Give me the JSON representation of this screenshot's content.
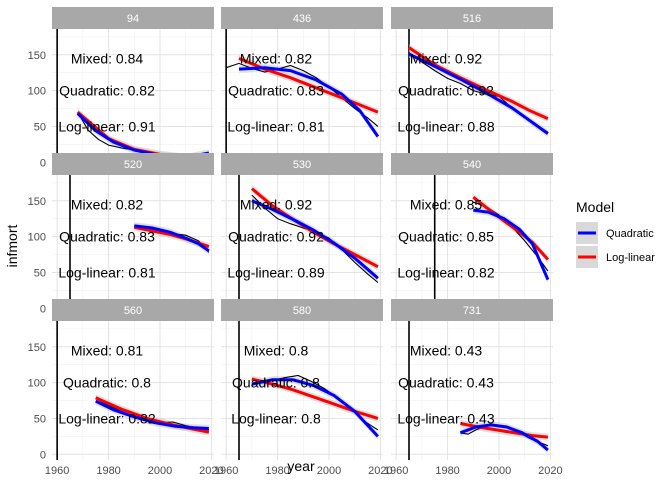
{
  "chart_data": {
    "type": "line",
    "xlabel": "year",
    "ylabel": "infmort",
    "xlim": [
      1958,
      2021
    ],
    "ylim": [
      -8,
      186
    ],
    "x_ticks": [
      1960,
      1980,
      2000,
      2020
    ],
    "x_tick_labels": [
      "1960",
      "1980",
      "2000",
      "2020"
    ],
    "y_ticks": [
      0,
      50,
      100,
      150
    ],
    "y_tick_labels": [
      "0",
      "50",
      "100",
      "150"
    ],
    "grid": true,
    "legend": {
      "title": "Model",
      "position": "right",
      "entries": [
        {
          "label": "Quadratic",
          "color": "#0000ff"
        },
        {
          "label": "Log-linear",
          "color": "#ff0000"
        }
      ]
    },
    "colors": {
      "strip_background": "#a8a8a8",
      "observed": "#000000",
      "quadratic": "#0000ff",
      "loglinear": "#ff0000",
      "ribbon": "#c8c8c8"
    },
    "panels": [
      {
        "label": "94",
        "vline": 1960,
        "annotations": [
          "Mixed: 0.84",
          "Quadratic: 0.82",
          "Log-linear: 0.91"
        ],
        "observed": [
          [
            1968,
            70
          ],
          [
            1972,
            45
          ],
          [
            1976,
            32
          ],
          [
            1980,
            24
          ],
          [
            1985,
            20
          ],
          [
            1990,
            17
          ],
          [
            1995,
            14
          ],
          [
            2000,
            12
          ],
          [
            2005,
            9
          ],
          [
            2010,
            8
          ],
          [
            2015,
            9
          ],
          [
            2019,
            13
          ]
        ],
        "quadratic": [
          [
            1968,
            68
          ],
          [
            1975,
            44
          ],
          [
            1982,
            28
          ],
          [
            1990,
            17
          ],
          [
            1998,
            11
          ],
          [
            2005,
            8
          ],
          [
            2012,
            8
          ],
          [
            2019,
            13
          ]
        ],
        "loglinear": [
          [
            1968,
            70
          ],
          [
            1980,
            33
          ],
          [
            1990,
            18
          ],
          [
            2000,
            11
          ],
          [
            2010,
            7
          ],
          [
            2019,
            4
          ]
        ]
      },
      {
        "label": "436",
        "vline": 1960,
        "annotations": [
          "Mixed: 0.82",
          "Quadratic: 0.83",
          "Log-linear: 0.81"
        ],
        "observed": [
          [
            1960,
            132
          ],
          [
            1965,
            138
          ],
          [
            1970,
            131
          ],
          [
            1975,
            126
          ],
          [
            1980,
            130
          ],
          [
            1985,
            135
          ],
          [
            1990,
            128
          ],
          [
            1995,
            118
          ],
          [
            2000,
            105
          ],
          [
            2005,
            90
          ],
          [
            2010,
            75
          ],
          [
            2015,
            62
          ],
          [
            2019,
            50
          ]
        ],
        "quadratic": [
          [
            1965,
            130
          ],
          [
            1975,
            132
          ],
          [
            1985,
            128
          ],
          [
            1995,
            115
          ],
          [
            2005,
            95
          ],
          [
            2012,
            72
          ],
          [
            2019,
            36
          ]
        ],
        "loglinear": [
          [
            1965,
            145
          ],
          [
            1975,
            130
          ],
          [
            1985,
            118
          ],
          [
            1995,
            104
          ],
          [
            2005,
            90
          ],
          [
            2012,
            80
          ],
          [
            2019,
            70
          ]
        ]
      },
      {
        "label": "516",
        "vline": 1965,
        "annotations": [
          "Mixed: 0.92",
          "Quadratic: 0.92",
          "Log-linear: 0.88"
        ],
        "observed": [
          [
            1965,
            153
          ],
          [
            1970,
            140
          ],
          [
            1975,
            128
          ],
          [
            1980,
            117
          ],
          [
            1985,
            110
          ],
          [
            1990,
            100
          ],
          [
            1995,
            95
          ],
          [
            2000,
            92
          ],
          [
            2005,
            76
          ],
          [
            2010,
            63
          ],
          [
            2015,
            51
          ],
          [
            2019,
            42
          ]
        ],
        "quadratic": [
          [
            1965,
            151
          ],
          [
            1975,
            134
          ],
          [
            1985,
            116
          ],
          [
            1995,
            97
          ],
          [
            2005,
            76
          ],
          [
            2012,
            58
          ],
          [
            2019,
            40
          ]
        ],
        "loglinear": [
          [
            1965,
            160
          ],
          [
            1975,
            136
          ],
          [
            1985,
            118
          ],
          [
            1995,
            101
          ],
          [
            2005,
            85
          ],
          [
            2012,
            72
          ],
          [
            2019,
            61
          ]
        ]
      },
      {
        "label": "520",
        "vline": 1965,
        "annotations": [
          "Mixed: 0.82",
          "Quadratic: 0.83",
          "Log-linear: 0.81"
        ],
        "observed": [
          [
            1990,
            113
          ],
          [
            1995,
            110
          ],
          [
            2000,
            107
          ],
          [
            2005,
            104
          ],
          [
            2010,
            102
          ],
          [
            2015,
            94
          ],
          [
            2019,
            78
          ]
        ],
        "quadratic": [
          [
            1990,
            115
          ],
          [
            1997,
            112
          ],
          [
            2004,
            106
          ],
          [
            2010,
            98
          ],
          [
            2015,
            90
          ],
          [
            2019,
            80
          ]
        ],
        "loglinear": [
          [
            1990,
            113
          ],
          [
            1997,
            108
          ],
          [
            2004,
            103
          ],
          [
            2010,
            97
          ],
          [
            2015,
            91
          ],
          [
            2019,
            86
          ]
        ]
      },
      {
        "label": "530",
        "vline": 1965,
        "annotations": [
          "Mixed: 0.92",
          "Quadratic: 0.92",
          "Log-linear: 0.89"
        ],
        "observed": [
          [
            1970,
            158
          ],
          [
            1975,
            140
          ],
          [
            1980,
            125
          ],
          [
            1985,
            118
          ],
          [
            1990,
            112
          ],
          [
            1995,
            106
          ],
          [
            2000,
            98
          ],
          [
            2005,
            82
          ],
          [
            2010,
            64
          ],
          [
            2015,
            48
          ],
          [
            2019,
            36
          ]
        ],
        "quadratic": [
          [
            1970,
            150
          ],
          [
            1978,
            138
          ],
          [
            1986,
            124
          ],
          [
            1994,
            109
          ],
          [
            2002,
            91
          ],
          [
            2010,
            70
          ],
          [
            2019,
            42
          ]
        ],
        "loglinear": [
          [
            1970,
            167
          ],
          [
            1978,
            143
          ],
          [
            1986,
            124
          ],
          [
            1994,
            106
          ],
          [
            2002,
            90
          ],
          [
            2010,
            75
          ],
          [
            2019,
            58
          ]
        ]
      },
      {
        "label": "540",
        "vline": 1975,
        "annotations": [
          "Mixed: 0.85",
          "Quadratic: 0.85",
          "Log-linear: 0.82"
        ],
        "observed": [
          [
            1990,
            148
          ],
          [
            1995,
            142
          ],
          [
            2000,
            130
          ],
          [
            2005,
            114
          ],
          [
            2010,
            94
          ],
          [
            2015,
            72
          ],
          [
            2019,
            52
          ]
        ],
        "quadratic": [
          [
            1990,
            137
          ],
          [
            1996,
            134
          ],
          [
            2002,
            125
          ],
          [
            2008,
            110
          ],
          [
            2013,
            90
          ],
          [
            2019,
            40
          ]
        ],
        "loglinear": [
          [
            1990,
            155
          ],
          [
            1996,
            138
          ],
          [
            2002,
            122
          ],
          [
            2008,
            106
          ],
          [
            2013,
            92
          ],
          [
            2019,
            68
          ]
        ]
      },
      {
        "label": "560",
        "vline": 1960,
        "annotations": [
          "Mixed: 0.81",
          "Quadratic: 0.8",
          "Log-linear: 0.82"
        ],
        "observed": [
          [
            1975,
            78
          ],
          [
            1980,
            68
          ],
          [
            1985,
            60
          ],
          [
            1990,
            52
          ],
          [
            1995,
            47
          ],
          [
            2000,
            44
          ],
          [
            2005,
            45
          ],
          [
            2010,
            40
          ],
          [
            2015,
            36
          ],
          [
            2019,
            34
          ]
        ],
        "quadratic": [
          [
            1975,
            74
          ],
          [
            1982,
            62
          ],
          [
            1990,
            52
          ],
          [
            1998,
            44
          ],
          [
            2006,
            39
          ],
          [
            2013,
            37
          ],
          [
            2019,
            36
          ]
        ],
        "loglinear": [
          [
            1975,
            79
          ],
          [
            1985,
            63
          ],
          [
            1995,
            50
          ],
          [
            2005,
            41
          ],
          [
            2013,
            35
          ],
          [
            2019,
            31
          ]
        ]
      },
      {
        "label": "580",
        "vline": 1965,
        "annotations": [
          "Mixed: 0.8",
          "Quadratic: 0.8",
          "Log-linear: 0.8"
        ],
        "observed": [
          [
            1972,
            100
          ],
          [
            1978,
            103
          ],
          [
            1983,
            107
          ],
          [
            1988,
            110
          ],
          [
            1993,
            102
          ],
          [
            1998,
            92
          ],
          [
            2003,
            80
          ],
          [
            2008,
            65
          ],
          [
            2013,
            48
          ],
          [
            2019,
            34
          ]
        ],
        "quadratic": [
          [
            1970,
            98
          ],
          [
            1978,
            104
          ],
          [
            1986,
            104
          ],
          [
            1994,
            96
          ],
          [
            2002,
            82
          ],
          [
            2010,
            60
          ],
          [
            2019,
            25
          ]
        ],
        "loglinear": [
          [
            1970,
            105
          ],
          [
            1978,
            98
          ],
          [
            1986,
            90
          ],
          [
            1994,
            80
          ],
          [
            2002,
            70
          ],
          [
            2010,
            60
          ],
          [
            2019,
            50
          ]
        ]
      },
      {
        "label": "731",
        "vline": 1965,
        "annotations": [
          "Mixed: 0.43",
          "Quadratic: 0.43",
          "Log-linear: 0.43"
        ],
        "observed": [
          [
            1985,
            30
          ],
          [
            1988,
            28
          ],
          [
            1991,
            34
          ],
          [
            1994,
            38
          ],
          [
            1997,
            42
          ],
          [
            2000,
            40
          ],
          [
            2004,
            37
          ],
          [
            2008,
            30
          ],
          [
            2012,
            22
          ],
          [
            2016,
            16
          ],
          [
            2019,
            12
          ]
        ],
        "quadratic": [
          [
            1985,
            30
          ],
          [
            1991,
            38
          ],
          [
            1997,
            41
          ],
          [
            2003,
            38
          ],
          [
            2009,
            30
          ],
          [
            2015,
            18
          ],
          [
            2019,
            6
          ]
        ],
        "loglinear": [
          [
            1985,
            43
          ],
          [
            1992,
            38
          ],
          [
            1999,
            34
          ],
          [
            2006,
            30
          ],
          [
            2013,
            26
          ],
          [
            2019,
            24
          ]
        ]
      }
    ]
  }
}
